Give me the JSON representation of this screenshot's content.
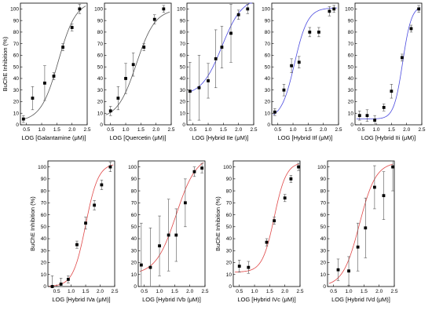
{
  "chart_data": [
    {
      "type": "scatter",
      "xlabel": "LOG [Galantamine (μM)]",
      "ylabel": "BuChE Inhibition (%)",
      "xlim": [
        0.3,
        2.5
      ],
      "ylim": [
        0,
        105
      ],
      "xticks": [
        "0.5",
        "1.0",
        "1.5",
        "2.0",
        "2.5"
      ],
      "yticks": [
        "0",
        "10",
        "20",
        "30",
        "40",
        "50",
        "60",
        "70",
        "80",
        "90",
        "100"
      ],
      "curve_color": "#555555",
      "curve": {
        "bottom": 3,
        "top": 107,
        "x50": 1.55,
        "slope": 1.5
      },
      "series": [
        {
          "x": 0.4,
          "y": 5,
          "err": 3
        },
        {
          "x": 0.7,
          "y": 23,
          "err": 10
        },
        {
          "x": 1.1,
          "y": 36,
          "err": 15
        },
        {
          "x": 1.4,
          "y": 42,
          "err": 3
        },
        {
          "x": 1.7,
          "y": 67,
          "err": 3
        },
        {
          "x": 2.0,
          "y": 84,
          "err": 3
        },
        {
          "x": 2.25,
          "y": 100,
          "err": 4
        }
      ]
    },
    {
      "type": "scatter",
      "xlabel": "LOG [Quercetin (μM)]",
      "ylabel": "",
      "xlim": [
        0.3,
        2.5
      ],
      "ylim": [
        0,
        105
      ],
      "xticks": [
        "0.5",
        "1.0",
        "1.5",
        "2.0",
        "2.5"
      ],
      "yticks": [
        "0",
        "10",
        "20",
        "30",
        "40",
        "50",
        "60",
        "70",
        "80",
        "90",
        "100"
      ],
      "curve_color": "#555555",
      "curve": {
        "bottom": 5,
        "top": 100,
        "x50": 1.35,
        "slope": 1.4
      },
      "series": [
        {
          "x": 0.5,
          "y": 12,
          "err": 4
        },
        {
          "x": 0.75,
          "y": 23,
          "err": 10
        },
        {
          "x": 1.0,
          "y": 40,
          "err": 13
        },
        {
          "x": 1.25,
          "y": 52,
          "err": 10
        },
        {
          "x": 1.6,
          "y": 67,
          "err": 3
        },
        {
          "x": 1.95,
          "y": 91,
          "err": 4
        },
        {
          "x": 2.25,
          "y": 100,
          "err": 3
        }
      ]
    },
    {
      "type": "scatter",
      "xlabel": "LOG [Hybrid IIe (μM)]",
      "ylabel": "",
      "xlim": [
        0.3,
        2.5
      ],
      "ylim": [
        0,
        105
      ],
      "xticks": [
        "0.5",
        "1.0",
        "1.5",
        "2.0",
        "2.5"
      ],
      "yticks": [
        "0",
        "10",
        "20",
        "30",
        "40",
        "50",
        "60",
        "70",
        "80",
        "90",
        "100"
      ],
      "curve_color": "#4a4adf",
      "curve": {
        "bottom": 25,
        "top": 110,
        "x50": 1.45,
        "slope": 1.3
      },
      "series": [
        {
          "x": 0.4,
          "y": 29,
          "err": 25
        },
        {
          "x": 0.7,
          "y": 32,
          "err": 28
        },
        {
          "x": 1.0,
          "y": 38,
          "err": 15
        },
        {
          "x": 1.25,
          "y": 57,
          "err": 25
        },
        {
          "x": 1.45,
          "y": 67,
          "err": 18
        },
        {
          "x": 1.75,
          "y": 79,
          "err": 25
        },
        {
          "x": 2.0,
          "y": 95,
          "err": 4
        },
        {
          "x": 2.3,
          "y": 100,
          "err": 4
        }
      ]
    },
    {
      "type": "scatter",
      "xlabel": "LOG [Hybrid IIf (μM)]",
      "ylabel": "",
      "xlim": [
        0.3,
        2.5
      ],
      "ylim": [
        0,
        105
      ],
      "xticks": [
        "0.5",
        "1.0",
        "1.5",
        "2.0",
        "2.5"
      ],
      "yticks": [
        "0",
        "10",
        "20",
        "30",
        "40",
        "50",
        "60",
        "70",
        "80",
        "90",
        "100"
      ],
      "curve_color": "#4a4adf",
      "curve": {
        "bottom": 5,
        "top": 101,
        "x50": 1.05,
        "slope": 2.0
      },
      "series": [
        {
          "x": 0.4,
          "y": 11,
          "err": 3
        },
        {
          "x": 0.7,
          "y": 30,
          "err": 5
        },
        {
          "x": 0.95,
          "y": 51,
          "err": 6
        },
        {
          "x": 1.2,
          "y": 54,
          "err": 5
        },
        {
          "x": 1.55,
          "y": 80,
          "err": 4
        },
        {
          "x": 1.85,
          "y": 80,
          "err": 4
        },
        {
          "x": 2.2,
          "y": 98,
          "err": 4
        },
        {
          "x": 2.35,
          "y": 100,
          "err": 3
        }
      ]
    },
    {
      "type": "scatter",
      "xlabel": "LOG [Hybrid IIi (μM)]",
      "ylabel": "",
      "xlim": [
        0.3,
        2.5
      ],
      "ylim": [
        0,
        105
      ],
      "xticks": [
        "0.5",
        "1.0",
        "1.5",
        "2.0",
        "2.5"
      ],
      "yticks": [
        "0",
        "10",
        "20",
        "30",
        "40",
        "50",
        "60",
        "70",
        "80",
        "90",
        "100"
      ],
      "curve_color": "#4a4adf",
      "curve": {
        "bottom": 5,
        "top": 103,
        "x50": 1.87,
        "slope": 3.0
      },
      "series": [
        {
          "x": 0.45,
          "y": 8,
          "err": 4
        },
        {
          "x": 0.7,
          "y": 8,
          "err": 5
        },
        {
          "x": 0.95,
          "y": 4,
          "err": 4
        },
        {
          "x": 1.25,
          "y": 15,
          "err": 3
        },
        {
          "x": 1.5,
          "y": 29,
          "err": 6
        },
        {
          "x": 1.85,
          "y": 58,
          "err": 3
        },
        {
          "x": 2.15,
          "y": 83,
          "err": 3
        },
        {
          "x": 2.4,
          "y": 100,
          "err": 3
        }
      ]
    },
    {
      "type": "scatter",
      "xlabel": "LOG [Hybrid IVa (μM)]",
      "ylabel": "BuChE Inhibition (%)",
      "xlim": [
        0.2,
        2.5
      ],
      "ylim": [
        0,
        105
      ],
      "xticks": [
        "0.5",
        "1.0",
        "1.5",
        "2.0",
        "2.5"
      ],
      "yticks": [
        "0",
        "10",
        "20",
        "30",
        "40",
        "50",
        "60",
        "70",
        "80",
        "90",
        "100"
      ],
      "curve_color": "#e04848",
      "curve": {
        "bottom": 0,
        "top": 103,
        "x50": 1.5,
        "slope": 2.0
      },
      "series": [
        {
          "x": 0.35,
          "y": 0,
          "err": 9
        },
        {
          "x": 0.65,
          "y": 2,
          "err": 5
        },
        {
          "x": 0.9,
          "y": 6,
          "err": 3
        },
        {
          "x": 1.2,
          "y": 35,
          "err": 3
        },
        {
          "x": 1.5,
          "y": 53,
          "err": 5
        },
        {
          "x": 1.8,
          "y": 68,
          "err": 4
        },
        {
          "x": 2.05,
          "y": 85,
          "err": 4
        },
        {
          "x": 2.35,
          "y": 100,
          "err": 4
        }
      ]
    },
    {
      "type": "scatter",
      "xlabel": "LOG [Hybrid IVb (μM)]",
      "ylabel": "",
      "xlim": [
        0.3,
        2.5
      ],
      "ylim": [
        0,
        105
      ],
      "xticks": [
        "0.5",
        "1.0",
        "1.5",
        "2.0",
        "2.5"
      ],
      "yticks": [
        "0",
        "10",
        "20",
        "30",
        "40",
        "50",
        "60",
        "70",
        "80",
        "90",
        "100"
      ],
      "curve_color": "#e04848",
      "curve": {
        "bottom": 10,
        "top": 110,
        "x50": 1.55,
        "slope": 1.3
      },
      "series": [
        {
          "x": 0.4,
          "y": 18,
          "err": 35
        },
        {
          "x": 0.7,
          "y": 16,
          "err": 33
        },
        {
          "x": 1.0,
          "y": 34,
          "err": 25
        },
        {
          "x": 1.3,
          "y": 43,
          "err": 30
        },
        {
          "x": 1.55,
          "y": 43,
          "err": 22
        },
        {
          "x": 1.85,
          "y": 70,
          "err": 20
        },
        {
          "x": 2.15,
          "y": 96,
          "err": 4
        },
        {
          "x": 2.4,
          "y": 99,
          "err": 4
        }
      ]
    },
    {
      "type": "scatter",
      "xlabel": "LOG [Hybrid IVc (μM)]",
      "ylabel": "BuChE Inhibition (%)",
      "xlim": [
        0.3,
        2.5
      ],
      "ylim": [
        0,
        105
      ],
      "xticks": [
        "0.5",
        "1.0",
        "1.5",
        "2.0",
        "2.5"
      ],
      "yticks": [
        "0",
        "10",
        "20",
        "30",
        "40",
        "50",
        "60",
        "70",
        "80",
        "90",
        "100"
      ],
      "curve_color": "#e04848",
      "curve": {
        "bottom": 12,
        "top": 104,
        "x50": 1.65,
        "slope": 2.2
      },
      "series": [
        {
          "x": 0.5,
          "y": 17,
          "err": 5
        },
        {
          "x": 0.8,
          "y": 16,
          "err": 5
        },
        {
          "x": 1.4,
          "y": 37,
          "err": 3
        },
        {
          "x": 1.65,
          "y": 55,
          "err": 3
        },
        {
          "x": 2.0,
          "y": 74,
          "err": 3
        },
        {
          "x": 2.2,
          "y": 90,
          "err": 3
        },
        {
          "x": 2.45,
          "y": 100,
          "err": 3
        }
      ]
    },
    {
      "type": "scatter",
      "xlabel": "LOG [Hybrid IVd (μM)]",
      "ylabel": "",
      "xlim": [
        0.3,
        2.5
      ],
      "ylim": [
        0,
        105
      ],
      "xticks": [
        "0.5",
        "1.0",
        "1.5",
        "2.0",
        "2.5"
      ],
      "yticks": [
        "0",
        "10",
        "20",
        "30",
        "40",
        "50",
        "60",
        "70",
        "80",
        "90",
        "100"
      ],
      "curve_color": "#e04848",
      "curve": {
        "bottom": 0,
        "top": 104,
        "x50": 1.35,
        "slope": 1.6
      },
      "series": [
        {
          "x": 0.65,
          "y": 14,
          "err": 9
        },
        {
          "x": 1.0,
          "y": 13,
          "err": 12
        },
        {
          "x": 1.3,
          "y": 33,
          "err": 20
        },
        {
          "x": 1.55,
          "y": 49,
          "err": 25
        },
        {
          "x": 1.85,
          "y": 83,
          "err": 18
        },
        {
          "x": 2.15,
          "y": 76,
          "err": 20
        },
        {
          "x": 2.45,
          "y": 100,
          "err": 20
        }
      ]
    }
  ]
}
